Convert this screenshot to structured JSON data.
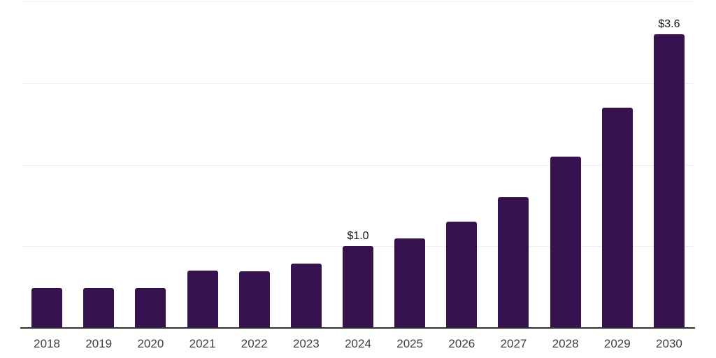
{
  "chart_data": {
    "type": "bar",
    "categories": [
      "2018",
      "2019",
      "2020",
      "2021",
      "2022",
      "2023",
      "2024",
      "2025",
      "2026",
      "2027",
      "2028",
      "2029",
      "2030"
    ],
    "values": [
      0.49,
      0.49,
      0.49,
      0.7,
      0.69,
      0.79,
      1.0,
      1.1,
      1.3,
      1.6,
      2.1,
      2.7,
      3.6
    ],
    "data_labels": [
      "",
      "",
      "",
      "",
      "",
      "",
      "$1.0",
      "",
      "",
      "",
      "",
      "",
      "$3.6"
    ],
    "ylim": [
      0,
      4
    ],
    "gridline_values": [
      1,
      2,
      3,
      4
    ],
    "grid": true,
    "legend": false,
    "y_axis_labels_visible": false,
    "colors": {
      "bar": "#35114E",
      "gridline": "#F0F0F0",
      "axis_line": "#333333",
      "tick_label": "#3F3F3F",
      "value_label": "#161616",
      "background": "#FFFFFF"
    }
  }
}
